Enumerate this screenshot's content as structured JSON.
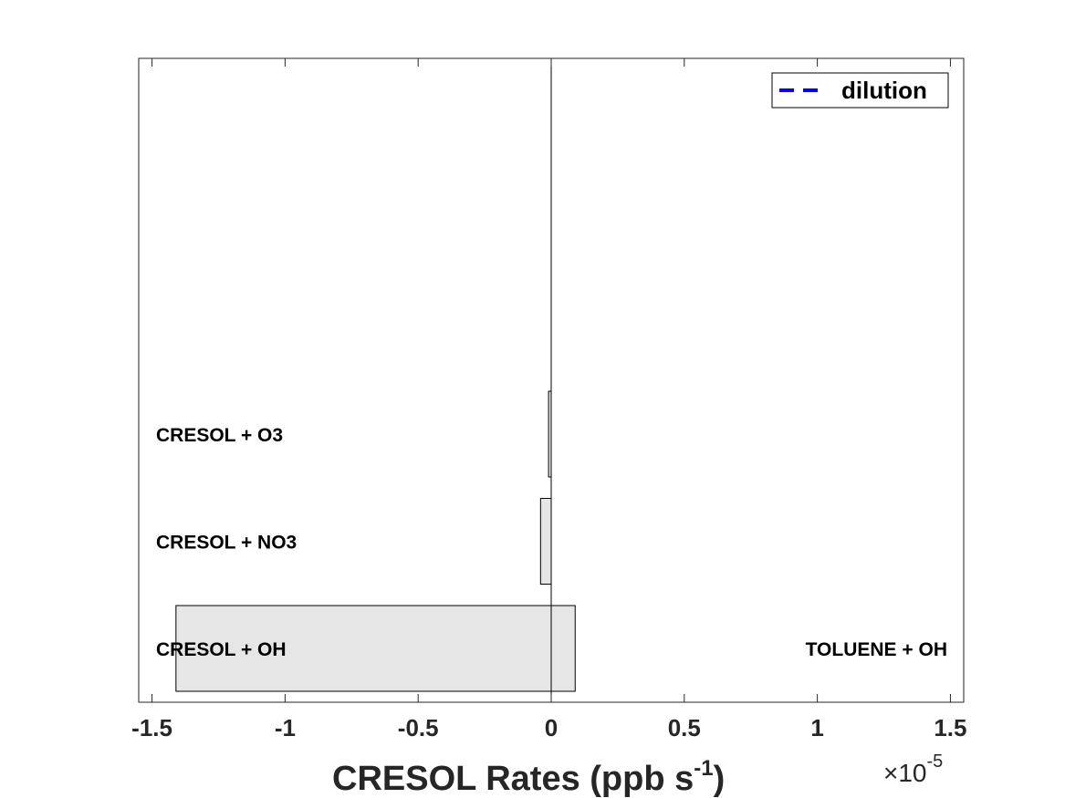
{
  "chart_data": {
    "type": "bar",
    "orientation": "horizontal",
    "stacked": true,
    "title": "",
    "xlabel": "CRESOL Rates (ppb s",
    "xlabel_exponent": "-1",
    "xlabel_close": ")",
    "x_scale_multiplier": "×10",
    "x_scale_exponent": "-5",
    "xlim": [
      -1.55,
      1.55
    ],
    "x_ticks": [
      -1.5,
      -1,
      -0.5,
      0,
      0.5,
      1,
      1.5
    ],
    "x_tick_labels": [
      "-1.5",
      "-1",
      "-0.5",
      "0",
      "0.5",
      "1",
      "1.5"
    ],
    "grid": false,
    "legend": {
      "position": "top-right",
      "entries": [
        {
          "label": "dilution",
          "style": "dashed",
          "color": "#0000ff"
        }
      ]
    },
    "bar_color": "#e6e6e6",
    "loss_rows": [
      {
        "label": "CRESOL + O3",
        "value": -0.01
      },
      {
        "label": "CRESOL + NO3",
        "value": -0.04
      },
      {
        "label": "CRESOL + OH",
        "value": -1.41
      }
    ],
    "production_rows": [
      {
        "label": "",
        "value": 0
      },
      {
        "label": "",
        "value": 0
      },
      {
        "label": "TOLUENE + OH",
        "value": 0.09
      }
    ]
  }
}
